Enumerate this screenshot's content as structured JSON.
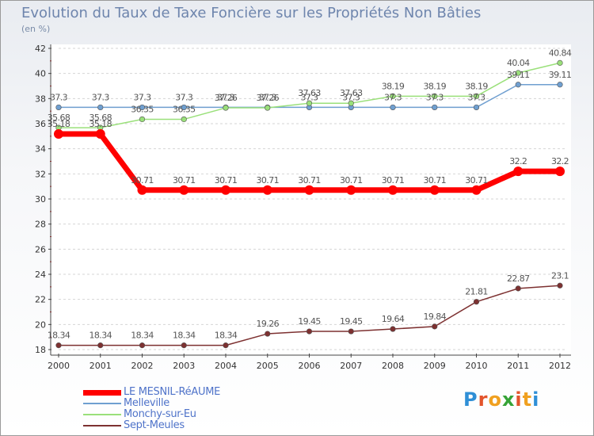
{
  "chart_data": {
    "type": "line",
    "title": "Evolution du Taux de Taxe Foncière sur les Propriétés Non Bâties",
    "ylabel": "(en %)",
    "xlabel": "",
    "x": [
      "2000",
      "2001",
      "2002",
      "2003",
      "2004",
      "2005",
      "2006",
      "2007",
      "2008",
      "2009",
      "2010",
      "2011",
      "2012"
    ],
    "ylim": [
      18,
      42
    ],
    "yticks": [
      "18",
      "20",
      "22",
      "24",
      "26",
      "28",
      "30",
      "32",
      "34",
      "36",
      "38",
      "40",
      "42"
    ],
    "grid": "horizontal dashed",
    "series": [
      {
        "name": "LE MESNIL-RéAUME",
        "color": "#ff0000",
        "values": [
          35.18,
          35.18,
          30.71,
          30.71,
          30.71,
          30.71,
          30.71,
          30.71,
          30.71,
          30.71,
          30.71,
          32.2,
          32.2
        ],
        "labels": [
          "35.18",
          "35.18",
          "30.71",
          "30.71",
          "30.71",
          "30.71",
          "30.71",
          "30.71",
          "30.71",
          "30.71",
          "30.71",
          "32.2",
          "32.2"
        ]
      },
      {
        "name": "Melleville",
        "color": "#6f9fd0",
        "values": [
          37.3,
          37.3,
          37.3,
          37.3,
          37.3,
          37.3,
          37.3,
          37.3,
          37.3,
          37.3,
          37.3,
          39.11,
          39.11
        ],
        "labels": [
          "37.3",
          "37.3",
          "37.3",
          "37.3",
          "37.3",
          "37.3",
          "37.3",
          "37.3",
          "37.3",
          "37.3",
          "37.3",
          "39.11",
          "39.11"
        ]
      },
      {
        "name": "Monchy-sur-Eu",
        "color": "#9ae07a",
        "values": [
          35.68,
          35.68,
          36.35,
          36.35,
          37.26,
          37.26,
          37.63,
          37.63,
          38.19,
          38.19,
          38.19,
          40.04,
          40.84
        ],
        "labels": [
          "35.68",
          "35.68",
          "36.35",
          "36.35",
          "37.26",
          "37.26",
          "37.63",
          "37.63",
          "38.19",
          "38.19",
          "38.19",
          "40.04",
          "40.84"
        ]
      },
      {
        "name": "Sept-Meules",
        "color": "#7d3131",
        "values": [
          18.34,
          18.34,
          18.34,
          18.34,
          18.34,
          19.26,
          19.45,
          19.45,
          19.64,
          19.84,
          21.81,
          22.87,
          23.1
        ],
        "labels": [
          "18.34",
          "18.34",
          "18.34",
          "18.34",
          "18.34",
          "19.26",
          "19.45",
          "19.45",
          "19.64",
          "19.84",
          "21.81",
          "22.87",
          "23.1"
        ]
      }
    ]
  },
  "branding": {
    "logo_text": "Proxiti"
  }
}
